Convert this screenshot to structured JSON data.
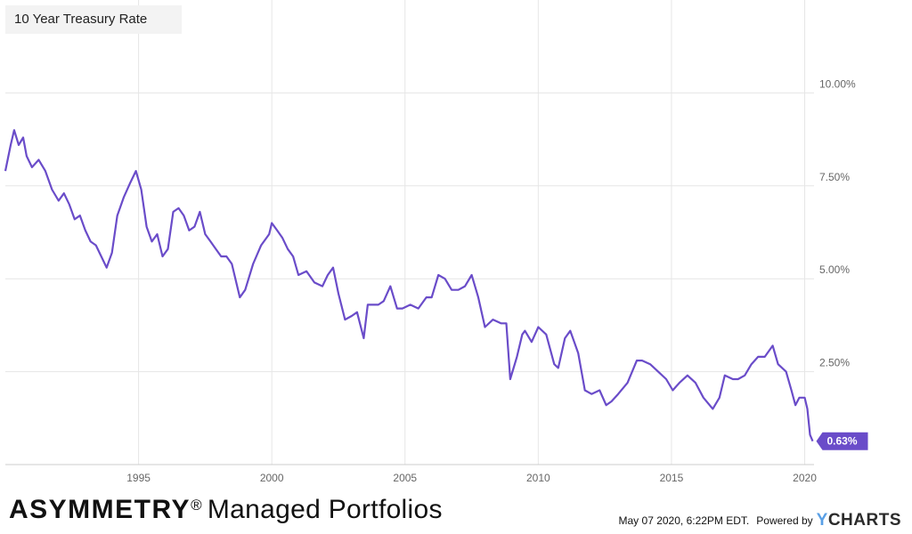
{
  "header": {
    "title": "10 Year Treasury Rate"
  },
  "footer": {
    "brand_name": "ASYMMETRY",
    "brand_mark": "®",
    "brand_tagline": "Managed Portfolios",
    "timestamp": "May 07 2020, 6:22PM EDT.",
    "powered_by": "Powered by",
    "provider_y": "Y",
    "provider_rest": "CHARTS"
  },
  "colors": {
    "line": "#6a4cc9",
    "grid": "#e6e6e6",
    "axis_text": "#666666",
    "label_bg": "#6a4cc9"
  },
  "chart_data": {
    "type": "line",
    "title": "10 Year Treasury Rate",
    "xlabel": "",
    "ylabel": "",
    "xlim": [
      1990.0,
      2020.35
    ],
    "ylim": [
      0,
      12.5
    ],
    "x_ticks": [
      1995,
      2000,
      2005,
      2010,
      2015,
      2020
    ],
    "x_tick_labels": [
      "1995",
      "2000",
      "2005",
      "2010",
      "2015",
      "2020"
    ],
    "y_ticks": [
      2.5,
      5,
      7.5,
      10
    ],
    "y_tick_labels": [
      "2.50%",
      "5.00%",
      "7.50%",
      "10.00%"
    ],
    "grid": true,
    "last_value_label": "0.63%",
    "series": [
      {
        "x": [
          1990.0,
          1990.2,
          1990.33,
          1990.5,
          1990.67,
          1990.8,
          1991.0,
          1991.25,
          1991.5,
          1991.75,
          1992.0,
          1992.2,
          1992.4,
          1992.6,
          1992.8,
          1993.0,
          1993.2,
          1993.4,
          1993.6,
          1993.8,
          1994.0,
          1994.2,
          1994.45,
          1994.7,
          1994.9,
          1995.1,
          1995.3,
          1995.5,
          1995.7,
          1995.9,
          1996.1,
          1996.3,
          1996.5,
          1996.7,
          1996.9,
          1997.1,
          1997.3,
          1997.5,
          1997.7,
          1997.9,
          1998.1,
          1998.3,
          1998.5,
          1998.7,
          1998.8,
          1999.0,
          1999.3,
          1999.6,
          1999.9,
          2000.0,
          2000.2,
          2000.4,
          2000.6,
          2000.8,
          2001.0,
          2001.3,
          2001.6,
          2001.9,
          2002.1,
          2002.3,
          2002.5,
          2002.75,
          2003.0,
          2003.2,
          2003.45,
          2003.6,
          2003.8,
          2004.0,
          2004.2,
          2004.45,
          2004.7,
          2004.9,
          2005.2,
          2005.5,
          2005.8,
          2006.0,
          2006.25,
          2006.5,
          2006.75,
          2007.0,
          2007.25,
          2007.5,
          2007.75,
          2008.0,
          2008.3,
          2008.6,
          2008.8,
          2008.95,
          2009.2,
          2009.4,
          2009.5,
          2009.75,
          2010.0,
          2010.3,
          2010.6,
          2010.75,
          2011.0,
          2011.2,
          2011.5,
          2011.75,
          2012.0,
          2012.3,
          2012.55,
          2012.75,
          2013.0,
          2013.35,
          2013.7,
          2013.9,
          2014.2,
          2014.5,
          2014.8,
          2015.05,
          2015.3,
          2015.6,
          2015.9,
          2016.2,
          2016.55,
          2016.8,
          2017.0,
          2017.3,
          2017.5,
          2017.75,
          2018.0,
          2018.25,
          2018.5,
          2018.8,
          2019.0,
          2019.3,
          2019.5,
          2019.65,
          2019.8,
          2020.0,
          2020.1,
          2020.2,
          2020.3
        ],
        "values": [
          7.9,
          8.6,
          9.0,
          8.6,
          8.8,
          8.3,
          8.0,
          8.2,
          7.9,
          7.4,
          7.1,
          7.3,
          7.0,
          6.6,
          6.7,
          6.3,
          6.0,
          5.9,
          5.6,
          5.3,
          5.7,
          6.7,
          7.2,
          7.6,
          7.9,
          7.4,
          6.4,
          6.0,
          6.2,
          5.6,
          5.8,
          6.8,
          6.9,
          6.7,
          6.3,
          6.4,
          6.8,
          6.2,
          6.0,
          5.8,
          5.6,
          5.6,
          5.4,
          4.8,
          4.5,
          4.7,
          5.4,
          5.9,
          6.2,
          6.5,
          6.3,
          6.1,
          5.8,
          5.6,
          5.1,
          5.2,
          4.9,
          4.8,
          5.1,
          5.3,
          4.6,
          3.9,
          4.0,
          4.1,
          3.4,
          4.3,
          4.3,
          4.3,
          4.4,
          4.8,
          4.2,
          4.2,
          4.3,
          4.2,
          4.5,
          4.5,
          5.1,
          5.0,
          4.7,
          4.7,
          4.8,
          5.1,
          4.5,
          3.7,
          3.9,
          3.8,
          3.8,
          2.3,
          2.9,
          3.5,
          3.6,
          3.3,
          3.7,
          3.5,
          2.7,
          2.6,
          3.4,
          3.6,
          3.0,
          2.0,
          1.9,
          2.0,
          1.6,
          1.7,
          1.9,
          2.2,
          2.8,
          2.8,
          2.7,
          2.5,
          2.3,
          2.0,
          2.2,
          2.4,
          2.2,
          1.8,
          1.5,
          1.8,
          2.4,
          2.3,
          2.3,
          2.4,
          2.7,
          2.9,
          2.9,
          3.2,
          2.7,
          2.5,
          2.0,
          1.6,
          1.8,
          1.8,
          1.5,
          0.8,
          0.63
        ]
      }
    ]
  }
}
